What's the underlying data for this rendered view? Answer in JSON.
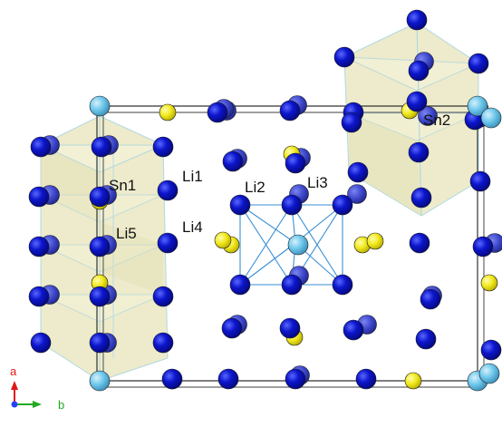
{
  "colors": {
    "li": "#0a14c8",
    "sn": "#f2ec22",
    "origin_atom": "#6fc8ec",
    "poly_fill": "#e9e6bf",
    "poly_edge": "#9fd0de",
    "bond": "#3a8fd6",
    "cell": "#333333",
    "axis_a": "#e01818",
    "axis_b": "#22aa22",
    "axis_c": "#2244ff"
  },
  "labels": {
    "sn1": "Sn1",
    "sn2": "Sn2",
    "li1": "Li1",
    "li2": "Li2",
    "li3": "Li3",
    "li4": "Li4",
    "li5": "Li5"
  },
  "axes": {
    "a": "a",
    "b": "b"
  }
}
